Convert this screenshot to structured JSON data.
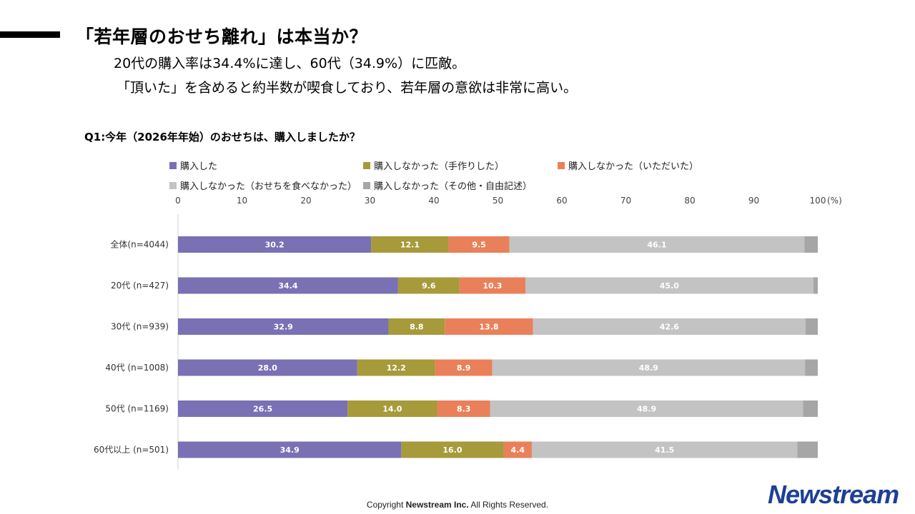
{
  "header": {
    "title": "「若年層のおせち離れ」は本当か？",
    "subtitle_line1": "20代の購入率は34.4%に達し、60代（34.9%）に匹敵。",
    "subtitle_line2": "「頂いた」を含めると約半数が喫食しており、若年層の意欲は非常に高い。"
  },
  "footer": {
    "copyright_prefix": "Copyright",
    "company": "Newstream Inc.",
    "rights": "All Rights Reserved.",
    "logo_text": "Newstream"
  },
  "chart_data": {
    "type": "bar",
    "orientation": "horizontal-stacked",
    "title": "Q1:今年（2026年年始）のおせちは、購入しましたか？",
    "unit_label": "(%)",
    "xlim": [
      0,
      100
    ],
    "x_ticks": [
      0,
      10,
      20,
      30,
      40,
      50,
      60,
      70,
      80,
      90,
      100
    ],
    "categories": [
      "全体(n=4044)",
      "20代 (n=427)",
      "30代 (n=939)",
      "40代 (n=1008)",
      "50代 (n=1169)",
      "60代以上 (n=501)"
    ],
    "series": [
      {
        "name": "購入した",
        "color": "#7a70b4",
        "values": [
          30.2,
          34.4,
          32.9,
          28.0,
          26.5,
          34.9
        ]
      },
      {
        "name": "購入しなかった（手作りした）",
        "color": "#a69a3a",
        "values": [
          12.1,
          9.6,
          8.8,
          12.2,
          14.0,
          16.0
        ]
      },
      {
        "name": "購入しなかった（いただいた）",
        "color": "#e9805a",
        "values": [
          9.5,
          10.3,
          13.8,
          8.9,
          8.3,
          4.4
        ]
      },
      {
        "name": "購入しなかった（おせちを食べなかった）",
        "color": "#c3c3c3",
        "values": [
          46.1,
          45.0,
          42.6,
          48.9,
          48.9,
          41.5
        ]
      },
      {
        "name": "購入しなかった（その他・自由記述）",
        "color": "#a6a6a6",
        "values": [
          2.1,
          0.7,
          1.9,
          2.0,
          2.3,
          3.2
        ]
      }
    ],
    "data_labels_shown_for_series": [
      0,
      1,
      2,
      3
    ],
    "legend_position": "top"
  }
}
